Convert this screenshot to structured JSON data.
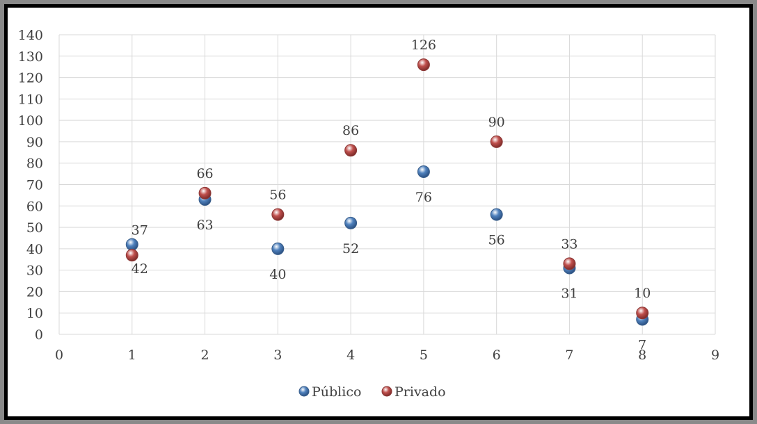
{
  "chart_data": {
    "type": "scatter",
    "title": "",
    "xlabel": "",
    "ylabel": "",
    "xlim": [
      0,
      9
    ],
    "ylim": [
      0,
      140
    ],
    "x_ticks": [
      "0",
      "1",
      "2",
      "3",
      "4",
      "5",
      "6",
      "7",
      "8",
      "9"
    ],
    "y_ticks": [
      "0",
      "10",
      "20",
      "30",
      "40",
      "50",
      "60",
      "70",
      "80",
      "90",
      "100",
      "110",
      "120",
      "130",
      "140"
    ],
    "grid": true,
    "legend_position": "bottom",
    "series": [
      {
        "name": "Público",
        "color": "#4f81bd",
        "x": [
          1,
          2,
          3,
          4,
          5,
          6,
          7,
          8
        ],
        "values": [
          42,
          63,
          40,
          52,
          76,
          56,
          31,
          7
        ]
      },
      {
        "name": "Privado",
        "color": "#c0504d",
        "x": [
          1,
          2,
          3,
          4,
          5,
          6,
          7,
          8
        ],
        "values": [
          37,
          66,
          56,
          86,
          126,
          90,
          33,
          10
        ]
      }
    ]
  }
}
